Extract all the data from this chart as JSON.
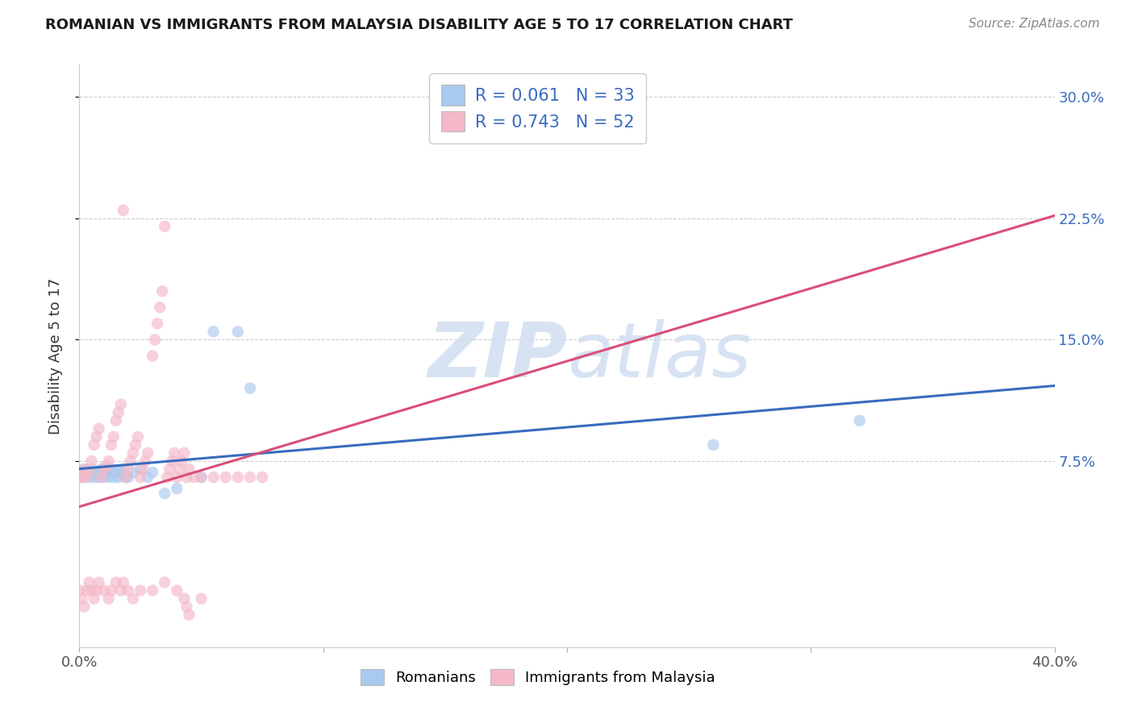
{
  "title": "ROMANIAN VS IMMIGRANTS FROM MALAYSIA DISABILITY AGE 5 TO 17 CORRELATION CHART",
  "source": "Source: ZipAtlas.com",
  "ylabel": "Disability Age 5 to 17",
  "xlim": [
    0.0,
    0.4
  ],
  "ylim": [
    -0.04,
    0.32
  ],
  "yticks_right": [
    0.075,
    0.15,
    0.225,
    0.3
  ],
  "ytick_labels_right": [
    "7.5%",
    "15.0%",
    "22.5%",
    "30.0%"
  ],
  "xtick_positions": [
    0.0,
    0.1,
    0.2,
    0.3,
    0.4
  ],
  "xtick_labels": [
    "0.0%",
    "",
    "",
    "",
    "40.0%"
  ],
  "r_romanian": 0.061,
  "n_romanian": 33,
  "r_malaysia": 0.743,
  "n_malaysia": 52,
  "romanian_color": "#aac9ee",
  "malaysia_color": "#f4b8c8",
  "romanian_line_color": "#3a6bbf",
  "malaysia_line_color": "#d94f78",
  "grid_color": "#c8c8d0",
  "background_color": "#ffffff",
  "watermark_color": "#d0dff0",
  "scatter_size": 110,
  "scatter_alpha": 0.65,
  "romanian_x": [
    0.0,
    0.001,
    0.002,
    0.003,
    0.004,
    0.005,
    0.006,
    0.007,
    0.008,
    0.009,
    0.01,
    0.011,
    0.012,
    0.013,
    0.014,
    0.015,
    0.016,
    0.017,
    0.018,
    0.019,
    0.02,
    0.022,
    0.025,
    0.028,
    0.03,
    0.035,
    0.04,
    0.05,
    0.055,
    0.065,
    0.07,
    0.26,
    0.32
  ],
  "romanian_y": [
    0.068,
    0.065,
    0.07,
    0.068,
    0.065,
    0.07,
    0.065,
    0.068,
    0.065,
    0.07,
    0.065,
    0.068,
    0.065,
    0.07,
    0.065,
    0.068,
    0.065,
    0.068,
    0.07,
    0.065,
    0.065,
    0.068,
    0.07,
    0.065,
    0.068,
    0.055,
    0.058,
    0.065,
    0.155,
    0.155,
    0.12,
    0.085,
    0.1
  ],
  "malaysia_x": [
    0.0,
    0.001,
    0.002,
    0.003,
    0.004,
    0.005,
    0.006,
    0.007,
    0.008,
    0.009,
    0.01,
    0.011,
    0.012,
    0.013,
    0.014,
    0.015,
    0.016,
    0.017,
    0.018,
    0.019,
    0.02,
    0.021,
    0.022,
    0.023,
    0.024,
    0.025,
    0.026,
    0.027,
    0.028,
    0.03,
    0.031,
    0.032,
    0.033,
    0.034,
    0.035,
    0.036,
    0.037,
    0.038,
    0.039,
    0.04,
    0.041,
    0.042,
    0.043,
    0.044,
    0.045,
    0.047,
    0.05,
    0.055,
    0.06,
    0.065,
    0.07,
    0.075
  ],
  "malaysia_y": [
    0.065,
    0.065,
    0.07,
    0.065,
    0.068,
    0.075,
    0.085,
    0.09,
    0.095,
    0.065,
    0.07,
    0.072,
    0.075,
    0.085,
    0.09,
    0.1,
    0.105,
    0.11,
    0.23,
    0.065,
    0.07,
    0.075,
    0.08,
    0.085,
    0.09,
    0.065,
    0.07,
    0.075,
    0.08,
    0.14,
    0.15,
    0.16,
    0.17,
    0.18,
    0.22,
    0.065,
    0.07,
    0.075,
    0.08,
    0.065,
    0.07,
    0.075,
    0.08,
    0.065,
    0.07,
    0.065,
    0.065,
    0.065,
    0.065,
    0.065,
    0.065,
    0.065
  ],
  "malaysia_extra_x": [
    0.0,
    0.001,
    0.002,
    0.003,
    0.004,
    0.005,
    0.006,
    0.007,
    0.008,
    0.01,
    0.012,
    0.013,
    0.015,
    0.017,
    0.018,
    0.02,
    0.022,
    0.025,
    0.03,
    0.035,
    0.04,
    0.043,
    0.044,
    0.045,
    0.05
  ],
  "malaysia_extra_y": [
    -0.005,
    -0.01,
    -0.015,
    -0.005,
    0.0,
    -0.005,
    -0.01,
    -0.005,
    0.0,
    -0.005,
    -0.01,
    -0.005,
    0.0,
    -0.005,
    0.0,
    -0.005,
    -0.01,
    -0.005,
    -0.005,
    0.0,
    -0.005,
    -0.01,
    -0.015,
    -0.02,
    -0.01
  ]
}
